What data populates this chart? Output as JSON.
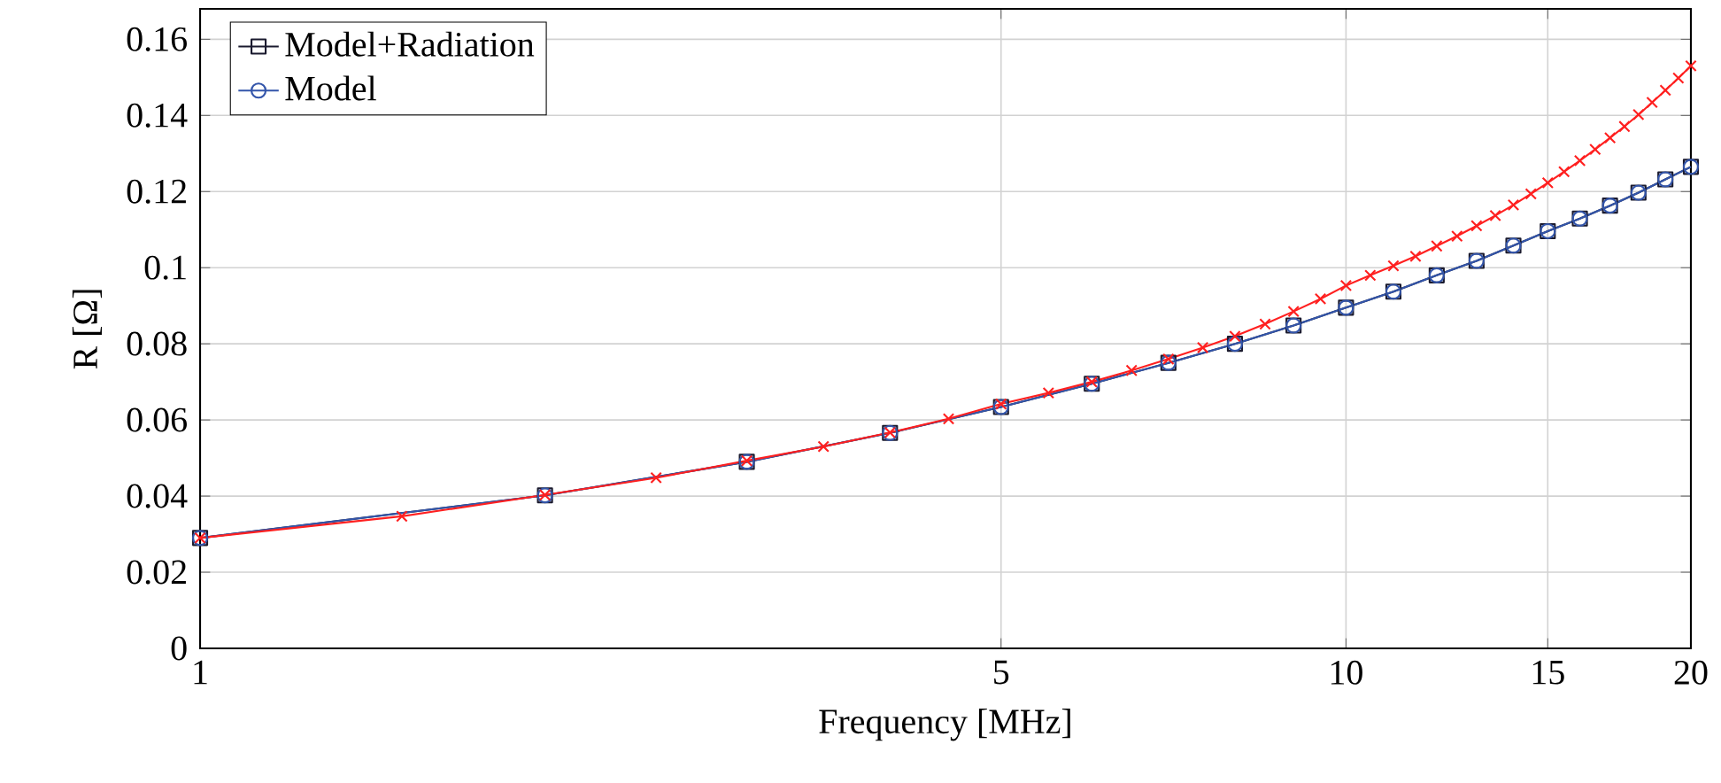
{
  "chart_data": {
    "type": "line",
    "xlabel": "Frequency [MHz]",
    "ylabel": "R [Ω]",
    "log": "x",
    "xlim": [
      1,
      20
    ],
    "xticks": [
      1,
      5,
      10,
      15,
      20
    ],
    "ylim": [
      0,
      0.168
    ],
    "yticks": [
      0,
      0.02,
      0.04,
      0.06,
      0.08,
      0.1,
      0.12,
      0.14,
      0.16
    ],
    "grid": true,
    "legend": "top left",
    "line_style": "solid",
    "series": [
      {
        "name": "Model+Radiation",
        "color": "#1a1a2e",
        "marker": "square",
        "x": [
          1,
          2,
          3,
          4,
          5,
          6,
          7,
          8,
          9,
          10,
          11,
          12,
          13,
          14,
          15,
          16,
          17,
          18,
          19,
          20
        ],
        "values": [
          0.029,
          0.0402,
          0.049,
          0.0566,
          0.0634,
          0.0695,
          0.075,
          0.08,
          0.0848,
          0.0895,
          0.0937,
          0.098,
          0.1018,
          0.1058,
          0.1096,
          0.1129,
          0.1163,
          0.1197,
          0.1232,
          0.1265
        ]
      },
      {
        "name": "Model",
        "color": "#3355aa",
        "marker": "circle",
        "x": [
          1,
          2,
          3,
          4,
          5,
          6,
          7,
          8,
          9,
          10,
          11,
          12,
          13,
          14,
          15,
          16,
          17,
          18,
          19,
          20
        ],
        "values": [
          0.029,
          0.0402,
          0.049,
          0.0566,
          0.0634,
          0.0695,
          0.075,
          0.08,
          0.0848,
          0.0895,
          0.0937,
          0.098,
          0.1018,
          0.1058,
          0.1096,
          0.1129,
          0.1163,
          0.1197,
          0.1232,
          0.1265
        ]
      },
      {
        "color": "#ff2020",
        "marker": "cross",
        "x": [
          1,
          1.5,
          2,
          2.5,
          3,
          3.5,
          4,
          4.5,
          5,
          5.5,
          6,
          6.5,
          7,
          7.5,
          8,
          8.5,
          9,
          9.5,
          10,
          10.5,
          11,
          11.5,
          12,
          12.5,
          13,
          13.5,
          14,
          14.5,
          15,
          15.5,
          16,
          16.5,
          17,
          17.5,
          18,
          18.5,
          19,
          19.5,
          20
        ],
        "values": [
          0.029,
          0.0347,
          0.0403,
          0.0448,
          0.0493,
          0.053,
          0.0567,
          0.0603,
          0.0642,
          0.0671,
          0.07,
          0.073,
          0.076,
          0.079,
          0.082,
          0.0852,
          0.0885,
          0.0918,
          0.0953,
          0.098,
          0.1005,
          0.103,
          0.1057,
          0.1083,
          0.111,
          0.1137,
          0.1165,
          0.1194,
          0.1223,
          0.1252,
          0.1281,
          0.1311,
          0.1341,
          0.1371,
          0.1402,
          0.1434,
          0.1466,
          0.1498,
          0.153
        ]
      }
    ]
  }
}
